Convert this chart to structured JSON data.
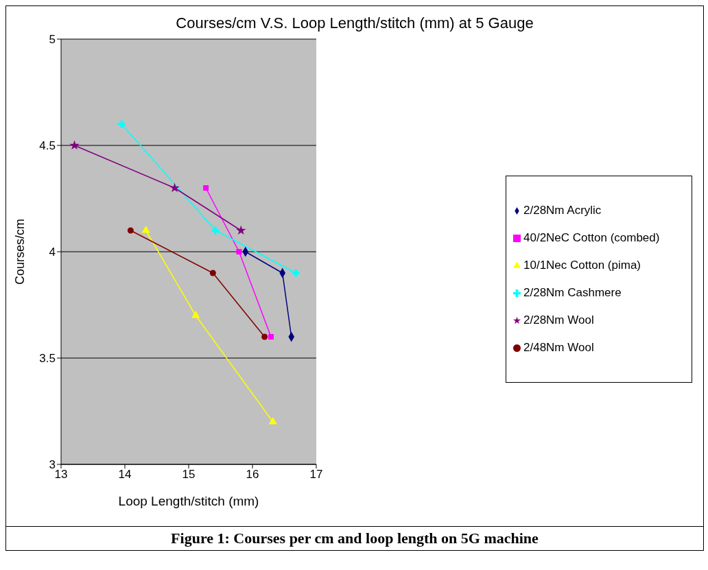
{
  "chart_data": {
    "type": "line",
    "title": "Courses/cm V.S. Loop Length/stitch (mm) at 5 Gauge",
    "xlabel": "Loop Length/stitch (mm)",
    "ylabel": "Courses/cm",
    "xlim": [
      13,
      17
    ],
    "xticks": [
      13,
      14,
      15,
      16,
      17
    ],
    "ylim": [
      3,
      5
    ],
    "yticks": [
      3,
      3.5,
      4,
      4.5,
      5
    ],
    "grid": "y",
    "legend": "right",
    "line_style": "solid",
    "series": [
      {
        "name": "2/28Nm Acrylic",
        "color": "#000080",
        "marker": "diamond",
        "x": [
          15.89,
          16.47,
          16.61
        ],
        "values": [
          4.0,
          3.9,
          3.6
        ]
      },
      {
        "name": "40/2NeC Cotton (combed)",
        "color": "#ff00ff",
        "marker": "square",
        "x": [
          15.27,
          15.79,
          16.29
        ],
        "values": [
          4.3,
          4.0,
          3.6
        ]
      },
      {
        "name": "10/1Nec Cotton (pima)",
        "color": "#ffff00",
        "marker": "triangle",
        "x": [
          14.33,
          15.11,
          16.32
        ],
        "values": [
          4.1,
          3.7,
          3.2
        ]
      },
      {
        "name": "2/28Nm Cashmere",
        "color": "#00ffff",
        "marker": "cross",
        "x": [
          13.95,
          15.42,
          16.68
        ],
        "values": [
          4.6,
          4.1,
          3.9
        ]
      },
      {
        "name": "2/28Nm Wool",
        "color": "#800080",
        "marker": "star",
        "x": [
          13.21,
          14.78,
          15.82
        ],
        "values": [
          4.5,
          4.3,
          4.1
        ]
      },
      {
        "name": "2/48Nm Wool",
        "color": "#800000",
        "marker": "circle",
        "x": [
          14.09,
          15.38,
          16.19
        ],
        "values": [
          4.1,
          3.9,
          3.6
        ]
      }
    ],
    "annotations": [
      "Figure 1: Courses per cm and loop length on 5G machine"
    ]
  }
}
